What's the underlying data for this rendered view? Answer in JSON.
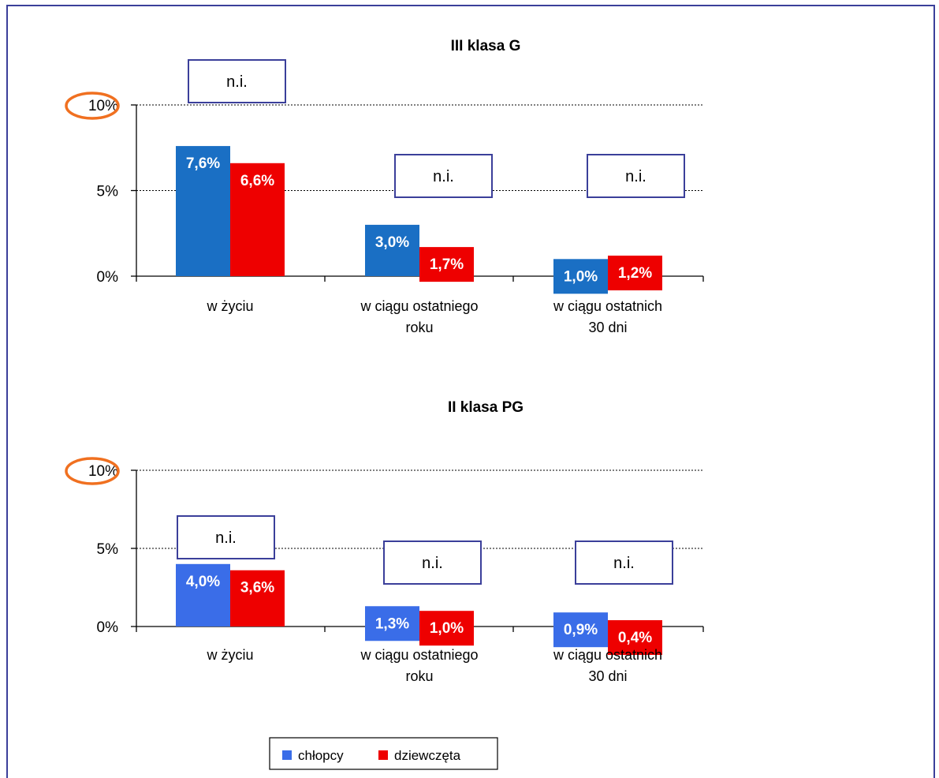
{
  "chart_data": [
    {
      "type": "bar",
      "title": "III klasa G",
      "categories": [
        "w życiu",
        "w ciągu ostatniego roku",
        "w ciągu ostatnich 30 dni"
      ],
      "category_lines": [
        [
          "w życiu"
        ],
        [
          "w ciągu ostatniego",
          "roku"
        ],
        [
          "w ciągu ostatnich",
          "30 dni"
        ]
      ],
      "series": [
        {
          "name": "chłopcy",
          "values": [
            7.6,
            3.0,
            1.0
          ],
          "labels": [
            "7,6%",
            "3,0%",
            "1,0%"
          ]
        },
        {
          "name": "dziewczęta",
          "values": [
            6.6,
            1.7,
            1.2
          ],
          "labels": [
            "6,6%",
            "1,7%",
            "1,2%"
          ]
        }
      ],
      "yticks": [
        "0%",
        "5%",
        "10%"
      ],
      "ylim": [
        0,
        10
      ],
      "ni_text": [
        "n.i.",
        "n.i.",
        "n.i."
      ],
      "highlighted_tick": "10%"
    },
    {
      "type": "bar",
      "title": "II klasa PG",
      "categories": [
        "w życiu",
        "w ciągu ostatniego roku",
        "w ciągu ostatnich 30 dni"
      ],
      "category_lines": [
        [
          "w życiu"
        ],
        [
          "w ciągu ostatniego",
          "roku"
        ],
        [
          "w ciągu ostatnich",
          "30 dni"
        ]
      ],
      "series": [
        {
          "name": "chłopcy",
          "values": [
            4.0,
            1.3,
            0.9
          ],
          "labels": [
            "4,0%",
            "1,3%",
            "0,9%"
          ]
        },
        {
          "name": "dziewczęta",
          "values": [
            3.6,
            1.0,
            0.4
          ],
          "labels": [
            "3,6%",
            "1,0%",
            "0,4%"
          ]
        }
      ],
      "yticks": [
        "0%",
        "5%",
        "10%"
      ],
      "ylim": [
        0,
        10
      ],
      "ni_text": [
        "n.i.",
        "n.i.",
        "n.i."
      ],
      "highlighted_tick": "10%"
    }
  ],
  "legend": {
    "items": [
      {
        "label": "chłopcy",
        "color": "#3a6de8"
      },
      {
        "label": "dziewczęta",
        "color": "#ee0000"
      }
    ],
    "placement": "bottom"
  },
  "colors": {
    "boys_dark": "#1a6fc4",
    "boys_light": "#3a6de8",
    "girls": "#ee0000",
    "highlight": "#f07020",
    "ni_border": "#3b3f9a"
  }
}
